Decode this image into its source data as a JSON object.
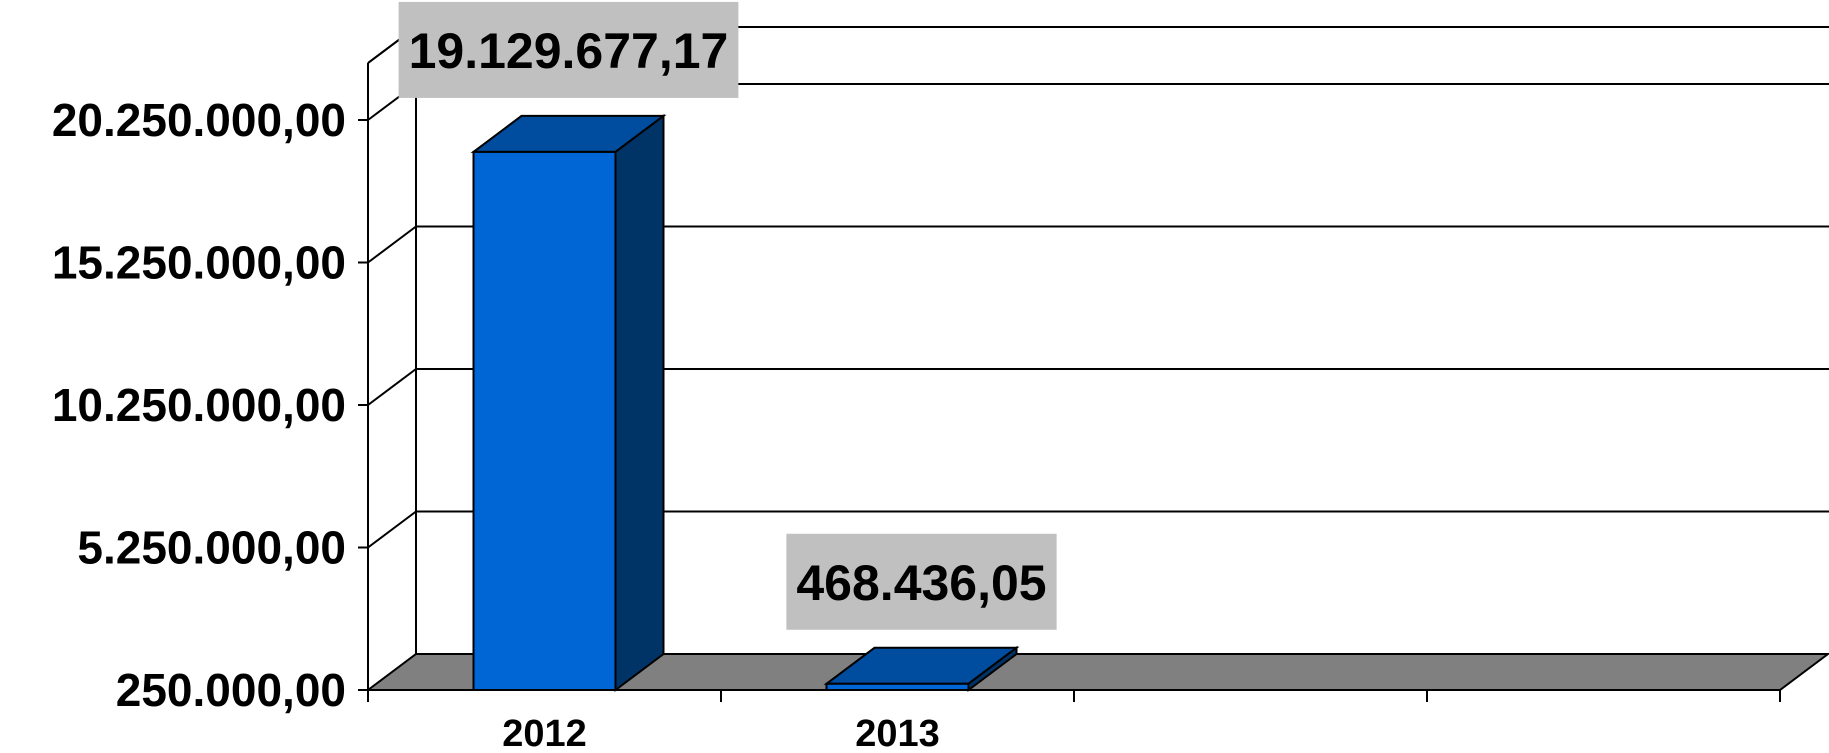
{
  "chart_data": {
    "type": "bar",
    "categories": [
      "2012",
      "2013"
    ],
    "values": [
      19129677.17,
      468436.05
    ],
    "value_labels": [
      "19.129.677,17",
      "468.436,05"
    ],
    "y_ticks": [
      250000,
      5250000,
      10250000,
      15250000,
      20250000
    ],
    "y_tick_labels": [
      "250.000,00",
      "5.250.000,00",
      "10.250.000,00",
      "15.250.000,00",
      "20.250.000,00"
    ],
    "ylim": [
      250000,
      22250000
    ],
    "title": "",
    "xlabel": "",
    "ylabel": "",
    "style": "3d-column",
    "grid": true,
    "legend": "none",
    "colors": {
      "bar_front": "#0066d6",
      "bar_top": "#004c9e",
      "bar_side": "#003366",
      "floor": "#808080",
      "label_box": "#c0c0c0",
      "axis": "#000000"
    }
  }
}
